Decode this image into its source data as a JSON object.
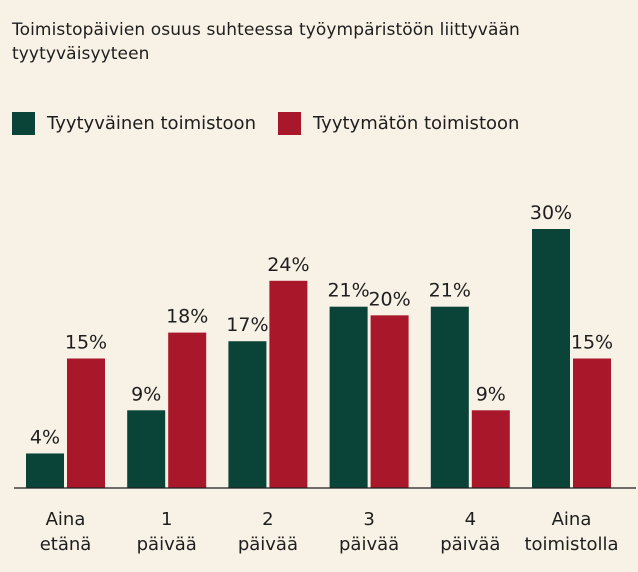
{
  "chart_data": {
    "type": "bar",
    "title": "Toimistopäivien osuus suhteessa työympäristöön liittyvään tyytyväisyyteen",
    "xlabel": "",
    "ylabel": "",
    "categories": [
      [
        "Aina",
        "etänä"
      ],
      [
        "1",
        "päivää"
      ],
      [
        "2",
        "päivää"
      ],
      [
        "3",
        "päivää"
      ],
      [
        "4",
        "päivää"
      ],
      [
        "Aina",
        "toimistolla"
      ]
    ],
    "series": [
      {
        "name": "Tyytyväinen toimistoon",
        "color": "#0a4337",
        "values": [
          4,
          9,
          17,
          21,
          21,
          30
        ],
        "labels": [
          "4%",
          "9%",
          "17%",
          "21%",
          "21%",
          "30%"
        ]
      },
      {
        "name": "Tyytymätön toimistoon",
        "color": "#a8182a",
        "values": [
          15,
          18,
          24,
          20,
          9,
          15
        ],
        "labels": [
          "15%",
          "18%",
          "24%",
          "20%",
          "9%",
          "15%"
        ]
      }
    ],
    "ylim": [
      0,
      30
    ],
    "grid": false,
    "legend_position": "top-left"
  }
}
